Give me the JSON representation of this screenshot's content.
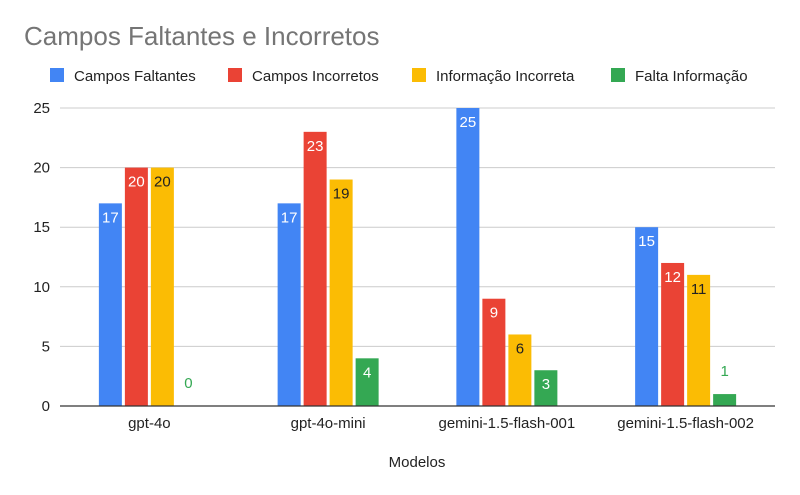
{
  "chart_data": {
    "type": "bar",
    "title": "Campos Faltantes e Incorretos",
    "xlabel": "Modelos",
    "ylabel": "",
    "ylim": [
      0,
      25
    ],
    "yticks": [
      0,
      5,
      10,
      15,
      20,
      25
    ],
    "grid": true,
    "legend_position": "top",
    "categories": [
      "gpt-4o",
      "gpt-4o-mini",
      "gemini-1.5-flash-001",
      "gemini-1.5-flash-002"
    ],
    "series": [
      {
        "name": "Campos Faltantes",
        "color": "#4285f4",
        "values": [
          17,
          17,
          25,
          15
        ]
      },
      {
        "name": "Campos Incorretos",
        "color": "#ea4335",
        "values": [
          20,
          23,
          9,
          12
        ]
      },
      {
        "name": "Informação Incorreta",
        "color": "#fbbc04",
        "values": [
          20,
          19,
          6,
          11
        ]
      },
      {
        "name": "Falta Informação",
        "color": "#34a853",
        "values": [
          0,
          4,
          3,
          1
        ]
      }
    ]
  }
}
